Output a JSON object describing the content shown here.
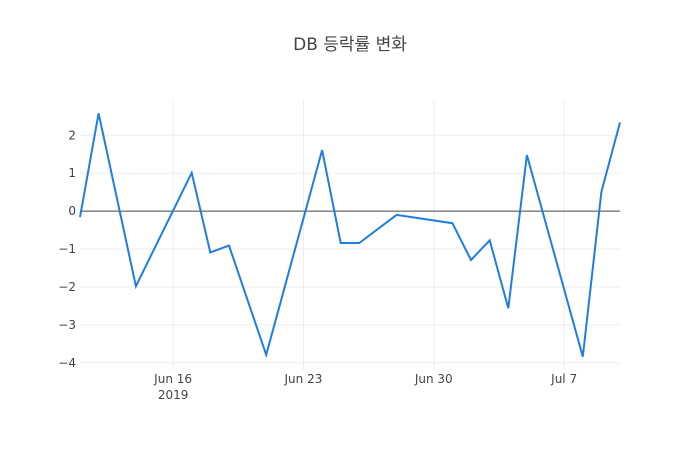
{
  "chart_data": {
    "type": "line",
    "title": "DB 등락률 변화",
    "xlabel": "",
    "ylabel": "",
    "x": [
      "2019-06-11",
      "2019-06-12",
      "2019-06-14",
      "2019-06-17",
      "2019-06-18",
      "2019-06-19",
      "2019-06-21",
      "2019-06-24",
      "2019-06-25",
      "2019-06-26",
      "2019-06-28",
      "2019-07-01",
      "2019-07-02",
      "2019-07-03",
      "2019-07-04",
      "2019-07-05",
      "2019-07-08",
      "2019-07-09",
      "2019-07-10"
    ],
    "series": [
      {
        "name": "DB",
        "color": "#1f7ee0",
        "values": [
          -0.16,
          2.58,
          -1.98,
          1.01,
          -1.09,
          -0.91,
          -3.79,
          1.61,
          -0.84,
          -0.84,
          -0.1,
          -0.32,
          -1.29,
          -0.77,
          -2.56,
          1.48,
          -3.84,
          0.51,
          2.34
        ]
      }
    ],
    "ylim": [
      -4.19,
      2.93
    ],
    "xlim": [
      "2019-06-11",
      "2019-07-10"
    ],
    "yticks": [
      2,
      1,
      0,
      -1,
      -2,
      -3,
      -4
    ],
    "ytick_labels": [
      "2",
      "1",
      "0",
      "−1",
      "−2",
      "−3",
      "−4"
    ],
    "xticks": [
      "2019-06-16",
      "2019-06-23",
      "2019-06-30",
      "2019-07-07"
    ],
    "xtick_labels": [
      "Jun 16",
      "Jun 23",
      "Jun 30",
      "Jul 7"
    ],
    "xtick_sublabel": "2019",
    "grid": true,
    "zeroline": true,
    "legend": "none"
  },
  "colors": {
    "line": "#1f7ee0",
    "grid": "#eeeeee",
    "zeroline": "#444444",
    "text": "#444444"
  }
}
